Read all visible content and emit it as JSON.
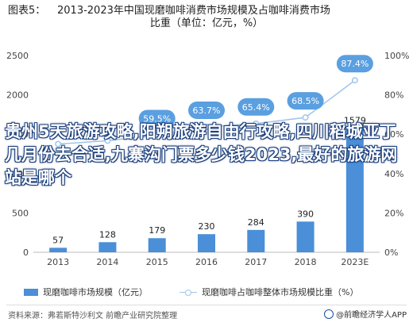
{
  "title": {
    "prefix": "图表5：",
    "line1": "2013-2023年中国现磨咖啡消费市场规模及占咖啡消费市场",
    "line2": "比重（单位：亿元，%）"
  },
  "chart_data": {
    "type": "bar+line",
    "categories": [
      "2013",
      "2014",
      "2015",
      "2016",
      "2017",
      "2018",
      "2023E"
    ],
    "series": [
      {
        "name": "现磨咖啡市场规模（亿元）",
        "type": "bar",
        "axis": "left",
        "values": [
          57,
          128,
          179,
          230,
          284,
          390,
          1579
        ]
      },
      {
        "name": "现磨咖啡占咖啡整体市场规模比重（%）",
        "type": "line",
        "axis": "right",
        "values": [
          55.0,
          56.7,
          59.5,
          63.7,
          65.4,
          68.5,
          87.4
        ]
      }
    ],
    "bar_labels": [
      "57",
      "128",
      "179",
      "230",
      "284",
      "390",
      "1579"
    ],
    "line_labels": [
      "",
      "",
      "59.5%",
      "63.7%",
      "65.4%",
      "68.5%",
      "87.4%"
    ],
    "left_axis": {
      "min": 0,
      "max": 2500,
      "ticks": [
        "0",
        "500",
        "1000",
        "1500",
        "2000",
        "2500"
      ]
    },
    "right_axis": {
      "min": 0,
      "max": 100,
      "ticks": [
        "0%",
        "20%",
        "40%",
        "60%",
        "80%",
        "100%"
      ]
    },
    "legend_position": "bottom",
    "colors": {
      "bar": "#4a8fd8",
      "line": "#9ec6ec",
      "label_bubble": "#5a9fe0"
    }
  },
  "overlay_text": "贵州5天旅游攻略,阳朔旅游自由行攻略,四川稻城亚丁几月份去合适,九寨沟门票多少钱2023,最好的旅游网站是哪个",
  "source": "资料来源：弗若斯特沙利文 前瞻产业研究院整理",
  "brand": "@前瞻经济学人APP"
}
